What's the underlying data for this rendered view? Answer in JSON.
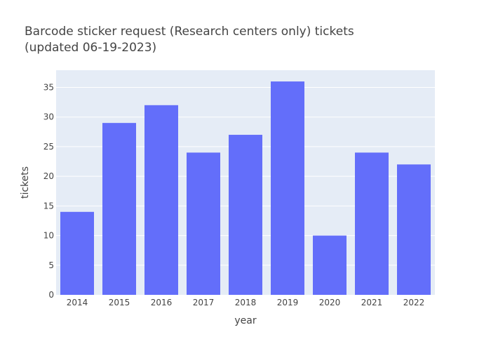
{
  "chart_data": {
    "type": "bar",
    "title_lines": [
      "Barcode sticker request (Research centers only) tickets",
      "(updated 06-19-2023)"
    ],
    "xlabel": "year",
    "ylabel": "tickets",
    "categories": [
      "2014",
      "2015",
      "2016",
      "2017",
      "2018",
      "2019",
      "2020",
      "2021",
      "2022"
    ],
    "values": [
      14,
      29,
      32,
      24,
      27,
      36,
      10,
      24,
      22
    ],
    "ylim": [
      0,
      37.9
    ],
    "yticks": [
      0,
      5,
      10,
      15,
      20,
      25,
      30,
      35
    ],
    "grid": true,
    "legend": "none",
    "colors": {
      "bar": "#636efa",
      "plot_bg": "#e5ecf6",
      "grid": "#ffffff",
      "text": "#444444"
    }
  }
}
